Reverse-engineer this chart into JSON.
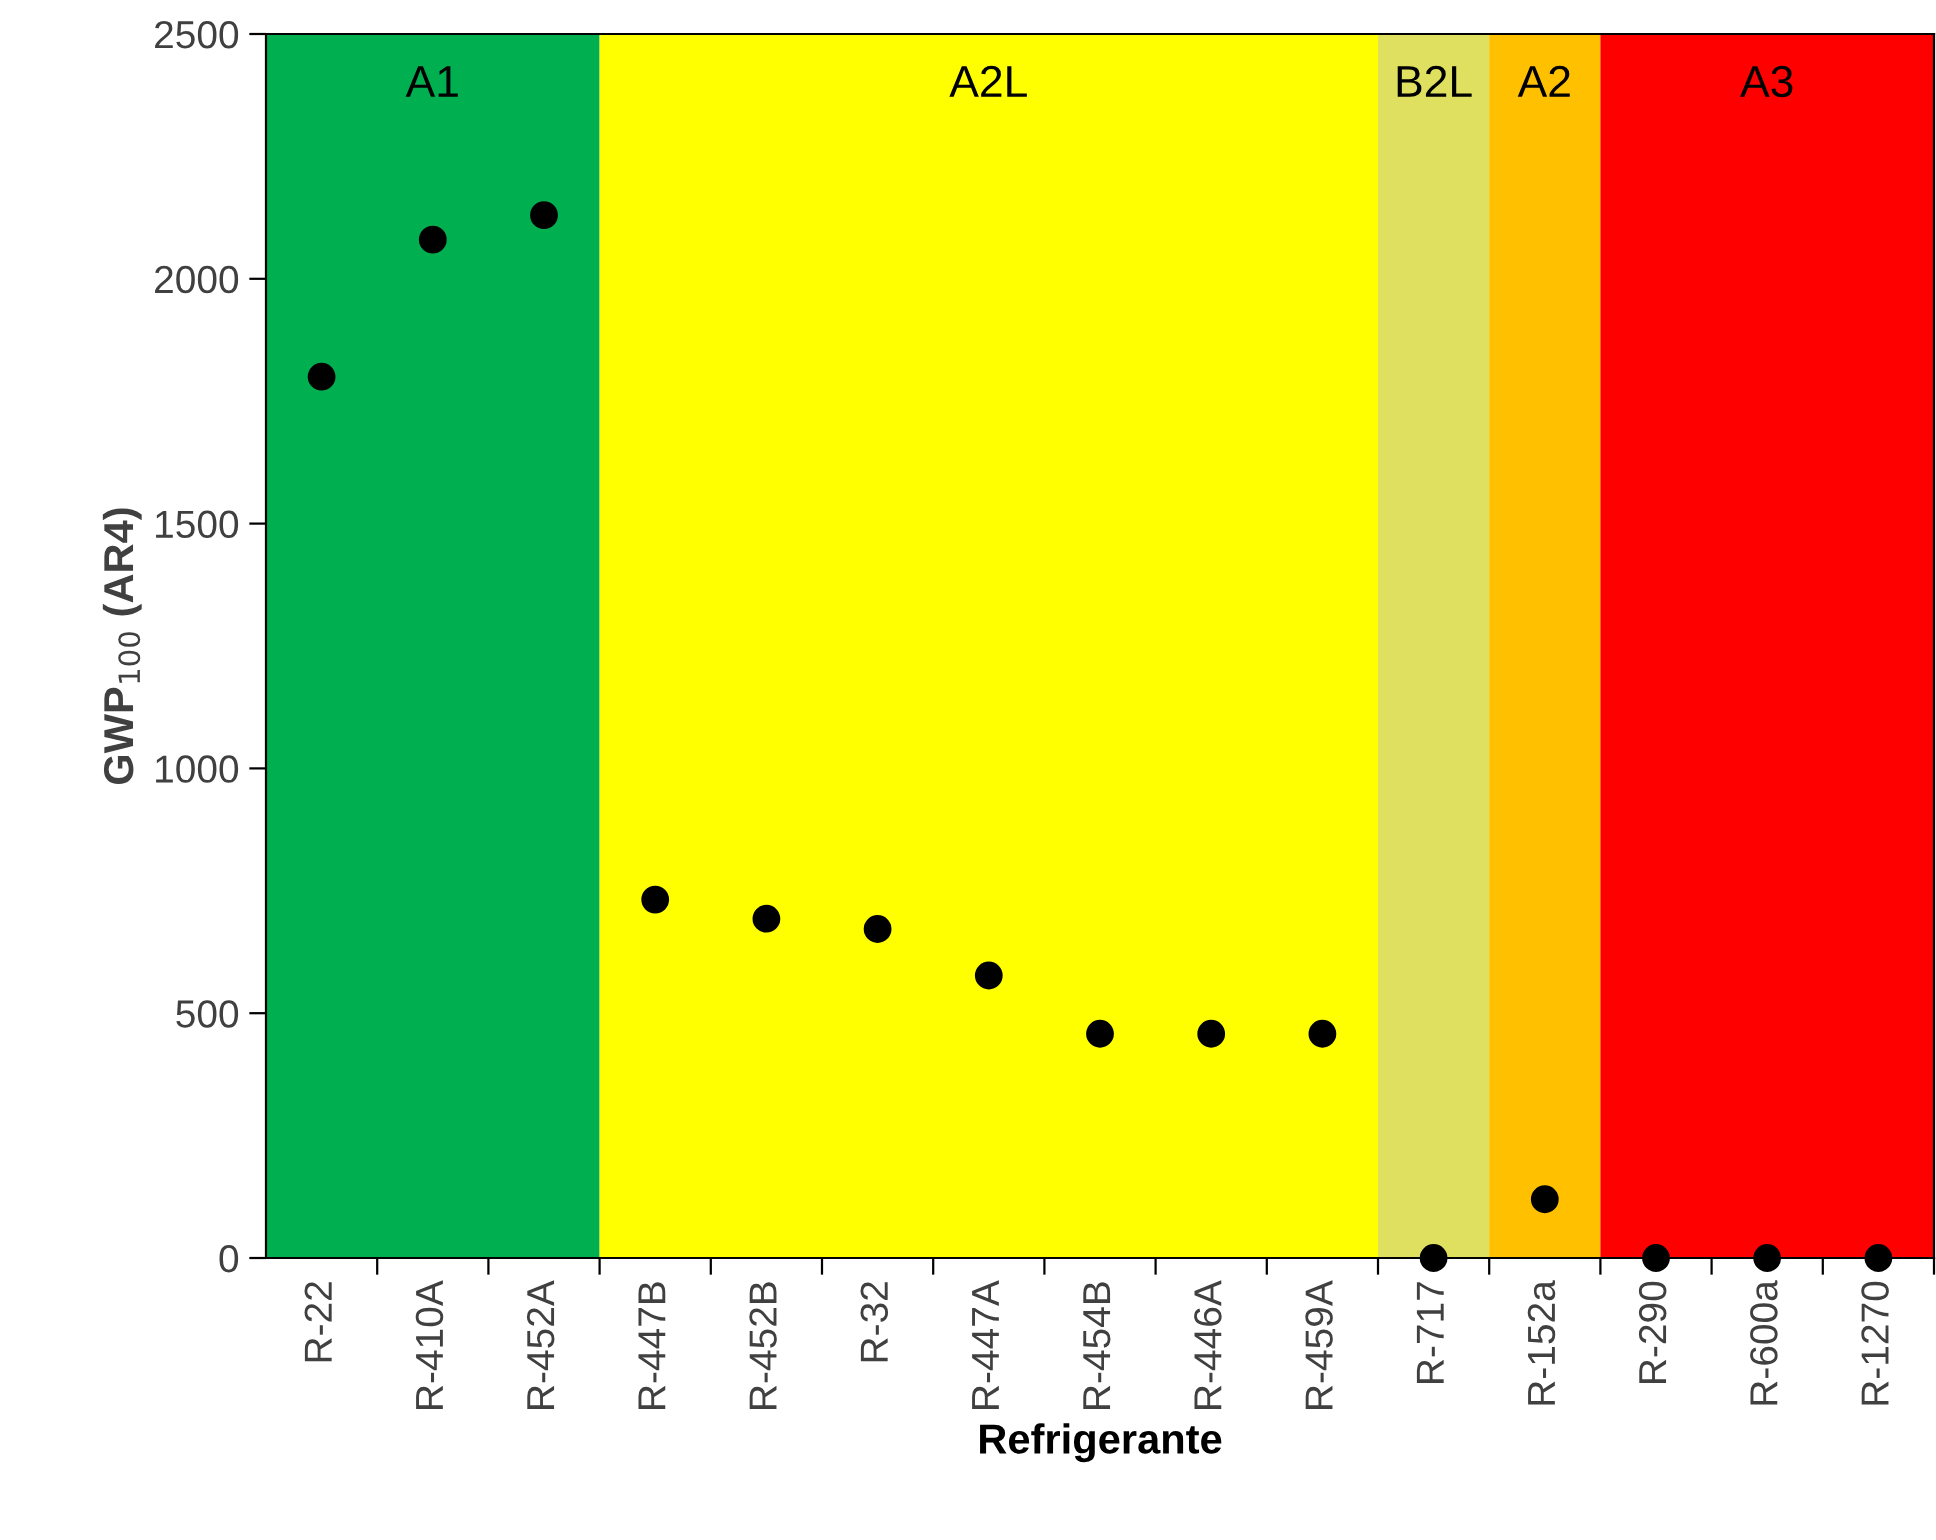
{
  "chart_data": {
    "type": "scatter",
    "xlabel": "Refrigerante",
    "ylabel": "GWP$_{100}$ (AR4)",
    "categories": [
      "R-22",
      "R-410A",
      "R-452A",
      "R-447B",
      "R-452B",
      "R-32",
      "R-447A",
      "R-454B",
      "R-446A",
      "R-459A",
      "R-717",
      "R-152a",
      "R-290",
      "R-600a",
      "R-1270"
    ],
    "series": [
      {
        "color": "#000000",
        "values": [
          1800,
          2080,
          2130,
          732,
          693,
          672,
          577,
          458,
          458,
          458,
          0,
          120,
          0,
          0,
          0
        ]
      }
    ],
    "ylim": [
      0,
      2500
    ],
    "yticks": [
      0,
      500,
      1000,
      1500,
      2000,
      2500
    ],
    "grid": false,
    "legend": false,
    "marker": "circle",
    "bands": [
      {
        "axis": "x",
        "from": "R-22",
        "to": "R-452A",
        "label": "A1",
        "color": "#00b050"
      },
      {
        "axis": "x",
        "from": "R-447B",
        "to": "R-459A",
        "label": "A2L",
        "color": "#ffff00"
      },
      {
        "axis": "x",
        "from": "R-717",
        "to": "R-717",
        "label": "B2L",
        "color": "#e0e060"
      },
      {
        "axis": "x",
        "from": "R-152a",
        "to": "R-152a",
        "label": "A2",
        "color": "#ffc000"
      },
      {
        "axis": "x",
        "from": "R-290",
        "to": "R-1270",
        "label": "A3",
        "color": "#ff0000"
      }
    ]
  }
}
